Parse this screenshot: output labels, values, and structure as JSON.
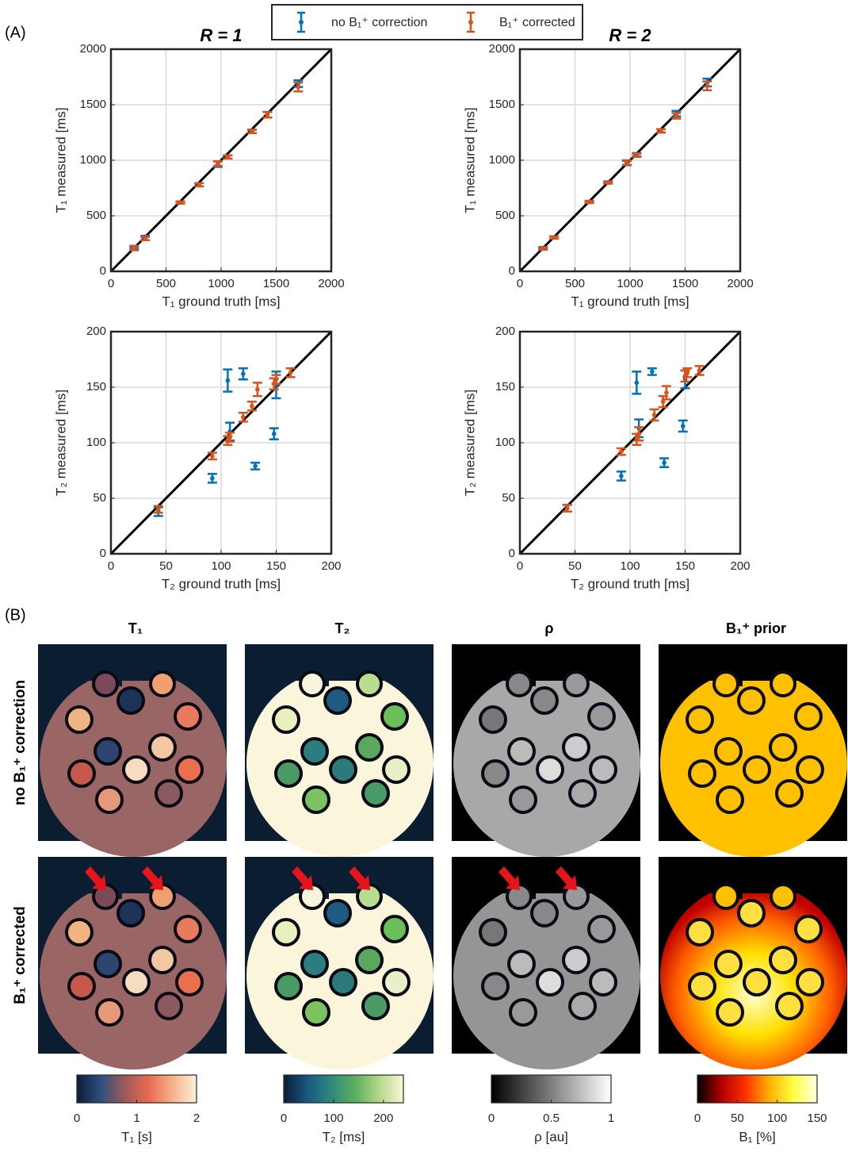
{
  "panels": [
    "(A)",
    "(B)"
  ],
  "chart_data": [
    {
      "type": "errorbar",
      "title": "R = 1",
      "xlabel": "T₁ ground truth [ms]",
      "ylabel": "T₁ measured [ms]",
      "xlim": [
        0,
        2000
      ],
      "ylim": [
        0,
        2000
      ],
      "xticks": [
        0,
        500,
        1000,
        1500,
        2000
      ],
      "yticks": [
        0,
        500,
        1000,
        1500,
        2000
      ],
      "grid": true,
      "series": [
        {
          "name": "no B₁⁺ correction",
          "color": "#0072bd",
          "x": [
            210,
            310,
            630,
            800,
            970,
            1060,
            1280,
            1420,
            1700
          ],
          "values": [
            210,
            300,
            620,
            780,
            965,
            1030,
            1260,
            1410,
            1690
          ],
          "errors": [
            10,
            20,
            10,
            15,
            25,
            15,
            15,
            25,
            30
          ]
        },
        {
          "name": "B₁⁺ corrected",
          "color": "#d95319",
          "x": [
            210,
            310,
            630,
            800,
            970,
            1060,
            1280,
            1420,
            1700
          ],
          "values": [
            210,
            295,
            620,
            780,
            970,
            1030,
            1260,
            1410,
            1660
          ],
          "errors": [
            20,
            15,
            10,
            15,
            20,
            15,
            15,
            25,
            40
          ]
        }
      ]
    },
    {
      "type": "errorbar",
      "title": "R = 2",
      "xlabel": "T₁ ground truth [ms]",
      "ylabel": "T₁ measured [ms]",
      "xlim": [
        0,
        2000
      ],
      "ylim": [
        0,
        2000
      ],
      "xticks": [
        0,
        500,
        1000,
        1500,
        2000
      ],
      "yticks": [
        0,
        500,
        1000,
        1500,
        2000
      ],
      "grid": true,
      "series": [
        {
          "name": "no B₁⁺ correction",
          "color": "#0072bd",
          "x": [
            210,
            310,
            630,
            800,
            970,
            1060,
            1280,
            1420,
            1700
          ],
          "values": [
            210,
            305,
            625,
            800,
            975,
            1050,
            1265,
            1420,
            1700
          ],
          "errors": [
            10,
            10,
            10,
            10,
            20,
            15,
            15,
            25,
            35
          ]
        },
        {
          "name": "B₁⁺ corrected",
          "color": "#d95319",
          "x": [
            210,
            310,
            630,
            800,
            970,
            1060,
            1280,
            1420,
            1700
          ],
          "values": [
            205,
            305,
            625,
            800,
            980,
            1045,
            1265,
            1400,
            1670
          ],
          "errors": [
            10,
            10,
            10,
            10,
            20,
            15,
            15,
            25,
            40
          ]
        }
      ]
    },
    {
      "type": "errorbar",
      "xlabel": "T₂ ground truth [ms]",
      "ylabel": "T₂ measured [ms]",
      "xlim": [
        0,
        200
      ],
      "ylim": [
        0,
        200
      ],
      "xticks": [
        0,
        50,
        100,
        150,
        200
      ],
      "yticks": [
        0,
        50,
        100,
        150,
        200
      ],
      "grid": true,
      "series": [
        {
          "name": "no B₁⁺ correction",
          "color": "#0072bd",
          "x": [
            43,
            92,
            106,
            108,
            120,
            131,
            148,
            150
          ],
          "values": [
            38,
            68,
            156,
            110,
            162,
            79,
            108,
            152
          ],
          "errors": [
            4,
            4,
            10,
            8,
            5,
            3,
            5,
            12
          ]
        },
        {
          "name": "B₁⁺ corrected",
          "color": "#d95319",
          "x": [
            43,
            92,
            106,
            108,
            120,
            128,
            133,
            148,
            150,
            163
          ],
          "values": [
            40,
            88,
            102,
            105,
            123,
            133,
            148,
            153,
            157,
            163
          ],
          "errors": [
            3,
            3,
            4,
            4,
            4,
            4,
            6,
            5,
            4,
            4
          ]
        }
      ]
    },
    {
      "type": "errorbar",
      "xlabel": "T₂ ground truth [ms]",
      "ylabel": "T₂ measured [ms]",
      "xlim": [
        0,
        200
      ],
      "ylim": [
        0,
        200
      ],
      "xticks": [
        0,
        50,
        100,
        150,
        200
      ],
      "yticks": [
        0,
        50,
        100,
        150,
        200
      ],
      "grid": true,
      "series": [
        {
          "name": "no B₁⁺ correction",
          "color": "#0072bd",
          "x": [
            43,
            92,
            106,
            108,
            120,
            131,
            148,
            150
          ],
          "values": [
            41,
            70,
            154,
            113,
            164,
            82,
            115,
            157
          ],
          "errors": [
            3,
            4,
            10,
            8,
            3,
            4,
            5,
            8
          ]
        },
        {
          "name": "B₁⁺ corrected",
          "color": "#d95319",
          "x": [
            43,
            92,
            106,
            108,
            122,
            130,
            133,
            150,
            152,
            163
          ],
          "values": [
            41,
            92,
            103,
            108,
            125,
            137,
            145,
            160,
            163,
            165
          ],
          "errors": [
            3,
            3,
            5,
            6,
            5,
            5,
            6,
            5,
            4,
            4
          ]
        }
      ]
    }
  ],
  "images": {
    "columns": [
      "T₁",
      "T₂",
      "ρ",
      "B₁⁺ prior"
    ],
    "rows": [
      "no B₁⁺ correction",
      "B₁⁺ corrected"
    ],
    "colorbars": [
      {
        "label": "T₁ [s]",
        "lim": [
          0,
          2
        ],
        "ticks": [
          0,
          1,
          2
        ],
        "colors": [
          "#0b1d3a",
          "#2f4f7f",
          "#9d5a5a",
          "#e86a50",
          "#f4b38a",
          "#fbf1dc"
        ]
      },
      {
        "label": "T₂ [ms]",
        "lim": [
          0,
          240
        ],
        "ticks": [
          0,
          100,
          200
        ],
        "colors": [
          "#0b1d3a",
          "#185a80",
          "#2f8a7a",
          "#5cb05c",
          "#b4d98a",
          "#fbf6d8"
        ]
      },
      {
        "label": "ρ [au]",
        "lim": [
          0,
          1
        ],
        "ticks": [
          0,
          0.5,
          1
        ],
        "colors": [
          "#000000",
          "#ffffff"
        ]
      },
      {
        "label": "B₁ [%]",
        "lim": [
          0,
          150
        ],
        "ticks": [
          0,
          50,
          100,
          150
        ],
        "colors": [
          "#000000",
          "#b00000",
          "#ff3000",
          "#ffb000",
          "#ffff40",
          "#ffffe8"
        ]
      }
    ]
  }
}
